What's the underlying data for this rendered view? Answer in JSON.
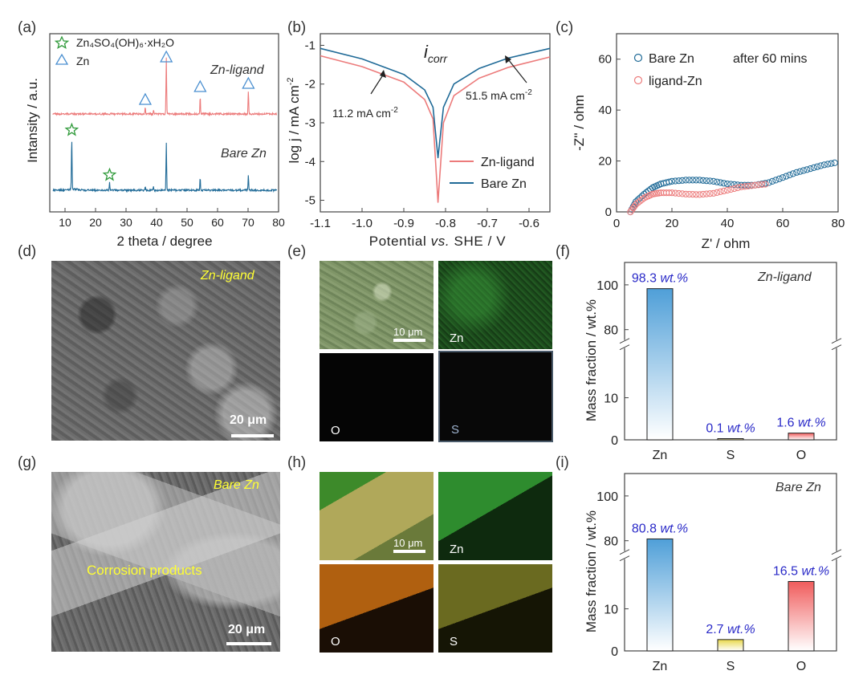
{
  "panel_labels": {
    "a": "(a)",
    "b": "(b)",
    "c": "(c)",
    "d": "(d)",
    "e": "(e)",
    "f": "(f)",
    "g": "(g)",
    "h": "(h)",
    "i": "(i)"
  },
  "colors": {
    "red": "#ec7b7b",
    "blue": "#1f6a97",
    "green": "#2f9a3a",
    "triangle": "#4a8fd0",
    "bar_text": "#2a2ac8",
    "yellow_text": "#ffff33"
  },
  "panel_a": {
    "legend_star_text": "Zn₄SO₄(OH)₆·xH₂O",
    "legend_tri_text": "Zn",
    "label_top": "Zn-ligand",
    "label_bottom": "Bare Zn",
    "xlabel": "2 theta / degree",
    "ylabel": "Intansity / a.u.",
    "xticks": [
      "10",
      "20",
      "30",
      "40",
      "50",
      "60",
      "70",
      "80"
    ]
  },
  "panel_b": {
    "title": "i",
    "title_sub": "corr",
    "annotation_left": "11.2 mA cm",
    "annotation_right": "51.5 mA cm",
    "annotation_exp": "-2",
    "ylabel": "log j / mA cm",
    "ylabel_exp": "-2",
    "xlabel_pre": "Potential ",
    "xlabel_vs": "vs.",
    "xlabel_post": " SHE / V",
    "xticks": [
      "-1.1",
      "-1.0",
      "-0.9",
      "-0.8",
      "-0.7",
      "-0.6"
    ],
    "yticks": [
      "-1",
      "-2",
      "-3",
      "-4",
      "-5"
    ],
    "legend": [
      "Zn-ligand",
      "Bare Zn"
    ]
  },
  "panel_c": {
    "legend": [
      "Bare Zn",
      "ligand-Zn"
    ],
    "note": "after 60 mins",
    "xlabel": "Z' / ohm",
    "ylabel": "-Z'' / ohm",
    "xticks": [
      "0",
      "20",
      "40",
      "60",
      "80"
    ],
    "yticks": [
      "0",
      "20",
      "40",
      "60"
    ]
  },
  "panel_d": {
    "tag": "Zn-ligand",
    "scale": "20 μm"
  },
  "panel_e": {
    "scale": "10 μm",
    "maps": [
      "Zn",
      "O",
      "S"
    ]
  },
  "panel_f": {
    "tag": "Zn-ligand",
    "ylabel": "Mass fraction / wt.%",
    "yticks": [
      "100",
      "80",
      "10",
      "0"
    ],
    "categories": [
      "Zn",
      "S",
      "O"
    ],
    "bar_labels": [
      "98.3 wt.%",
      "0.1 wt.%",
      "1.6 wt.%"
    ]
  },
  "panel_g": {
    "tag": "Bare Zn",
    "inner": "Corrosion products",
    "scale": "20 μm"
  },
  "panel_h": {
    "scale": "10 μm",
    "maps": [
      "Zn",
      "O",
      "S"
    ]
  },
  "panel_i": {
    "tag": "Bare Zn",
    "ylabel": "Mass fraction / wt.%",
    "yticks": [
      "100",
      "80",
      "10",
      "0"
    ],
    "categories": [
      "Zn",
      "S",
      "O"
    ],
    "bar_labels": [
      "80.8 wt.%",
      "2.7 wt.%",
      "16.5 wt.%"
    ]
  },
  "chart_data": [
    {
      "type": "line",
      "panel": "a",
      "xlabel": "2 theta / degree",
      "ylabel": "Intansity / a.u.",
      "xlim": [
        5,
        80
      ],
      "series": [
        {
          "name": "Zn-ligand",
          "peaks_x": [
            36.3,
            39.0,
            43.2,
            54.3,
            70.1
          ]
        },
        {
          "name": "Bare Zn",
          "peaks_x": [
            12.2,
            24.6,
            36.3,
            39.0,
            43.2,
            54.3,
            70.1
          ]
        }
      ]
    },
    {
      "type": "line",
      "panel": "b",
      "xlabel": "Potential vs. SHE / V",
      "ylabel": "log j / mA cm-2",
      "xlim": [
        -1.1,
        -0.55
      ],
      "ylim": [
        -5.3,
        -0.7
      ],
      "series": [
        {
          "name": "Zn-ligand",
          "x": [
            -1.1,
            -1.0,
            -0.9,
            -0.85,
            -0.83,
            -0.818,
            -0.805,
            -0.78,
            -0.72,
            -0.65,
            -0.55
          ],
          "y": [
            -1.27,
            -1.55,
            -1.95,
            -2.4,
            -2.9,
            -5.05,
            -3.0,
            -2.3,
            -1.85,
            -1.57,
            -1.3
          ]
        },
        {
          "name": "Bare Zn",
          "x": [
            -1.1,
            -1.0,
            -0.9,
            -0.85,
            -0.83,
            -0.818,
            -0.805,
            -0.78,
            -0.72,
            -0.65,
            -0.55
          ],
          "y": [
            -1.08,
            -1.35,
            -1.75,
            -2.15,
            -2.6,
            -3.9,
            -2.6,
            -2.0,
            -1.6,
            -1.33,
            -1.08
          ]
        }
      ]
    },
    {
      "type": "scatter",
      "panel": "c",
      "xlabel": "Z' / ohm",
      "ylabel": "-Z'' / ohm",
      "xlim": [
        0,
        80
      ],
      "ylim": [
        0,
        70
      ],
      "series": [
        {
          "name": "Bare Zn",
          "x": [
            5,
            7,
            10,
            13,
            16,
            20,
            25,
            30,
            35,
            40,
            45,
            50,
            55,
            60,
            65,
            70,
            75,
            80
          ],
          "y": [
            0,
            4,
            7,
            9.5,
            11,
            12,
            12.5,
            12.5,
            12,
            11,
            10.5,
            10.5,
            11.5,
            13.5,
            15.5,
            17,
            18.5,
            19.5
          ]
        },
        {
          "name": "ligand-Zn",
          "x": [
            5,
            7,
            10,
            13,
            16,
            20,
            25,
            30,
            35,
            40,
            45,
            50,
            55
          ],
          "y": [
            0,
            3,
            5.5,
            7,
            7.5,
            7.5,
            7,
            6.8,
            7.3,
            8.5,
            9.8,
            10.5,
            11
          ]
        }
      ]
    },
    {
      "type": "bar",
      "panel": "f",
      "categories": [
        "Zn",
        "S",
        "O"
      ],
      "values": [
        98.3,
        0.1,
        1.6
      ],
      "ylabel": "Mass fraction / wt.%"
    },
    {
      "type": "bar",
      "panel": "i",
      "categories": [
        "Zn",
        "S",
        "O"
      ],
      "values": [
        80.8,
        2.7,
        16.5
      ],
      "ylabel": "Mass fraction / wt.%"
    }
  ]
}
